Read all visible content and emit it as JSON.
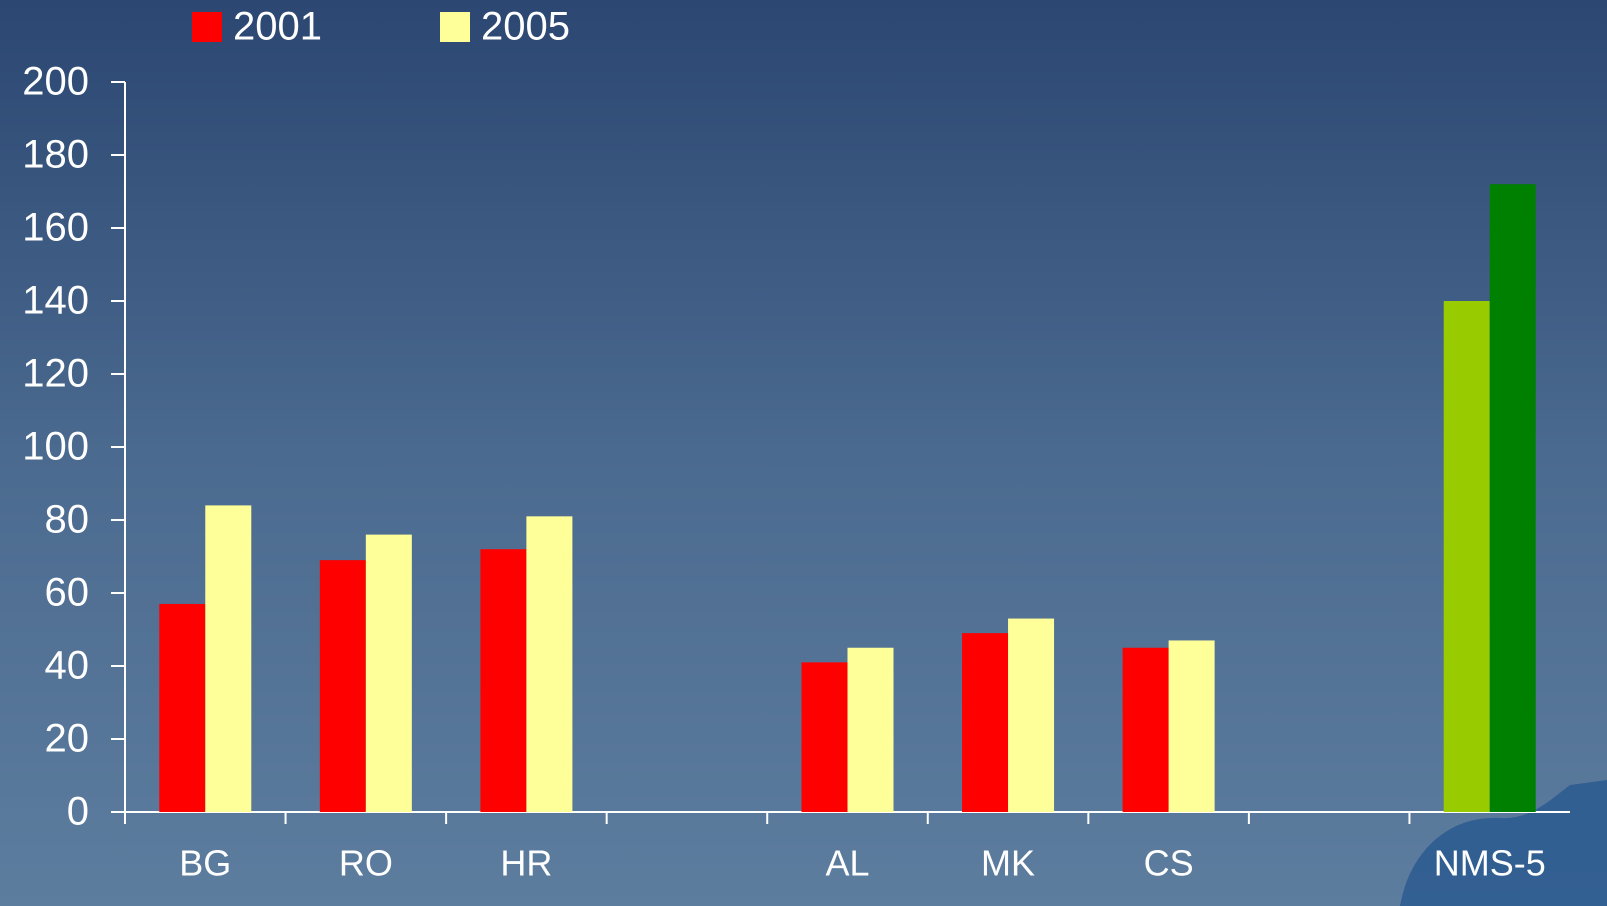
{
  "chart_data": {
    "type": "bar",
    "categories": [
      "BG",
      "RO",
      "HR",
      null,
      "AL",
      "MK",
      "CS",
      null,
      "NMS-5"
    ],
    "series": [
      {
        "name": "2001",
        "color": "#ff0000",
        "values": [
          57,
          69,
          72,
          null,
          41,
          49,
          45,
          null,
          140
        ],
        "colors": [
          "#ff0000",
          "#ff0000",
          "#ff0000",
          null,
          "#ff0000",
          "#ff0000",
          "#ff0000",
          null,
          "#99cc00"
        ]
      },
      {
        "name": "2005",
        "color": "#ffff99",
        "values": [
          84,
          76,
          81,
          null,
          45,
          53,
          47,
          null,
          172
        ],
        "colors": [
          "#ffff99",
          "#ffff99",
          "#ffff99",
          null,
          "#ffff99",
          "#ffff99",
          "#ffff99",
          null,
          "#008000"
        ]
      }
    ],
    "ylim": [
      0,
      200
    ],
    "yticks": [
      0,
      20,
      40,
      60,
      80,
      100,
      120,
      140,
      160,
      180,
      200
    ]
  }
}
